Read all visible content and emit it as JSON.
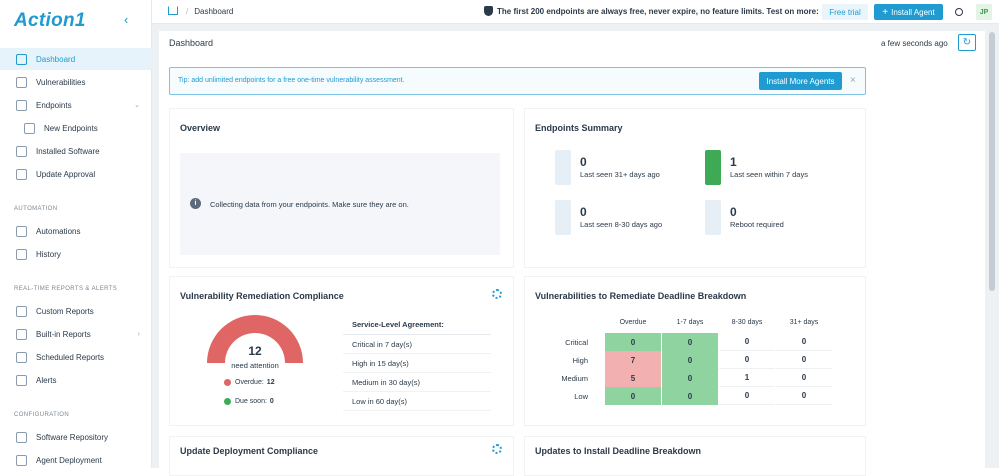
{
  "app": {
    "logo": "Action1"
  },
  "sidebar": {
    "items": [
      {
        "label": "Dashboard"
      },
      {
        "label": "Vulnerabilities"
      },
      {
        "label": "Endpoints"
      },
      {
        "label": "New Endpoints"
      },
      {
        "label": "Installed Software"
      },
      {
        "label": "Update Approval"
      },
      {
        "label": "Automations"
      },
      {
        "label": "History"
      },
      {
        "label": "Custom Reports"
      },
      {
        "label": "Built-in Reports"
      },
      {
        "label": "Scheduled Reports"
      },
      {
        "label": "Alerts"
      },
      {
        "label": "Software Repository"
      },
      {
        "label": "Agent Deployment"
      }
    ],
    "sections": {
      "automation": "AUTOMATION",
      "reports": "REAL-TIME REPORTS & ALERTS",
      "configuration": "CONFIGURATION"
    }
  },
  "topbar": {
    "breadcrumb": "Dashboard",
    "promo": "The first 200 endpoints are always free, never expire, no feature limits. Test on more:",
    "free_trial": "Free trial",
    "install_agent": "Install Agent",
    "avatar": "JP"
  },
  "page": {
    "title": "Dashboard",
    "updated": "a few seconds ago"
  },
  "tip": {
    "text": "Tip: add unlimited endpoints for a free one-time vulnerability assessment.",
    "button": "Install More Agents"
  },
  "overview": {
    "title": "Overview",
    "message": "Collecting data from your endpoints. Make sure they are on."
  },
  "summary": {
    "title": "Endpoints Summary",
    "items": [
      {
        "value": "0",
        "label": "Last seen 31+ days ago"
      },
      {
        "value": "1",
        "label": "Last seen within 7 days"
      },
      {
        "value": "0",
        "label": "Last seen 8-30 days ago"
      },
      {
        "value": "0",
        "label": "Reboot required"
      }
    ]
  },
  "compliance": {
    "title": "Vulnerability Remediation Compliance",
    "count": "12",
    "count_label": "need attention",
    "overdue_label": "Overdue:",
    "overdue_value": "12",
    "due_label": "Due soon:",
    "due_value": "0",
    "sla_header": "Service-Level Agreement:",
    "sla_rows": [
      "Critical in 7 day(s)",
      "High in 15 day(s)",
      "Medium in 30 day(s)",
      "Low in 60 day(s)"
    ]
  },
  "deadline": {
    "title": "Vulnerabilities to Remediate Deadline Breakdown",
    "columns": [
      "Overdue",
      "1-7 days",
      "8-30 days",
      "31+ days"
    ],
    "rows": [
      {
        "label": "Critical",
        "values": [
          "0",
          "0",
          "0",
          "0"
        ]
      },
      {
        "label": "High",
        "values": [
          "7",
          "0",
          "0",
          "0"
        ]
      },
      {
        "label": "Medium",
        "values": [
          "5",
          "0",
          "1",
          "0"
        ]
      },
      {
        "label": "Low",
        "values": [
          "0",
          "0",
          "0",
          "0"
        ]
      }
    ]
  },
  "update_compliance": {
    "title": "Update Deployment Compliance"
  },
  "updates_deadline": {
    "title": "Updates to Install Deadline Breakdown"
  },
  "colors": {
    "accent": "#1f9bd1",
    "overdue": "#e06666",
    "due": "#3faa55"
  }
}
